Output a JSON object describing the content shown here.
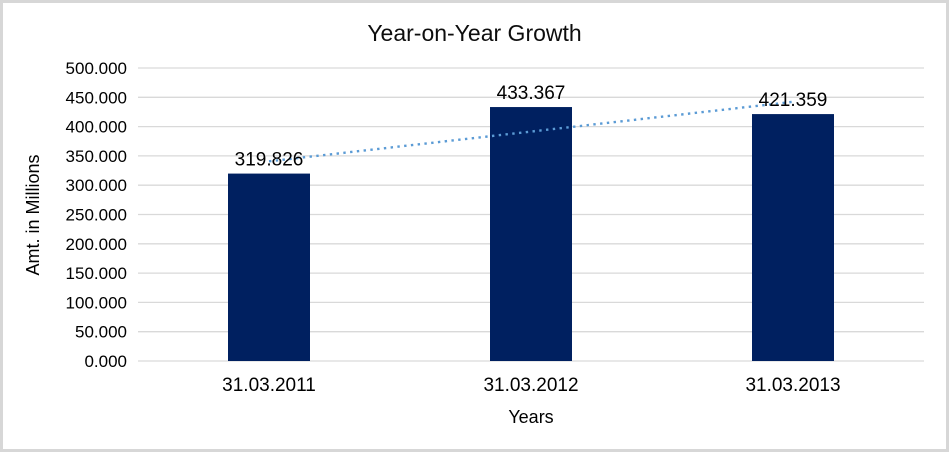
{
  "chart_data": {
    "type": "bar",
    "title": "Year-on-Year Growth",
    "categories": [
      "31.03.2011",
      "31.03.2012",
      "31.03.2013"
    ],
    "values": [
      319.826,
      433.367,
      421.359
    ],
    "data_labels": [
      "319.826",
      "433.367",
      "421.359"
    ],
    "xlabel": "Years",
    "ylabel": "Amt. in Millions",
    "ylim": [
      0,
      500
    ],
    "ytick_step": 50,
    "ytick_labels": [
      "0.000",
      "50.000",
      "100.000",
      "150.000",
      "200.000",
      "250.000",
      "300.000",
      "350.000",
      "400.000",
      "450.000",
      "500.000"
    ],
    "grid": true,
    "legend": "none",
    "trendline": {
      "type": "linear",
      "style": "dotted",
      "fit_values": [
        340.751,
        391.517,
        442.284
      ]
    }
  },
  "colors": {
    "bar": "#002060",
    "trendline": "#5B9BD5",
    "gridline": "#D9D9D9",
    "frame_border": "#D7D7D7",
    "text": "#000000"
  }
}
